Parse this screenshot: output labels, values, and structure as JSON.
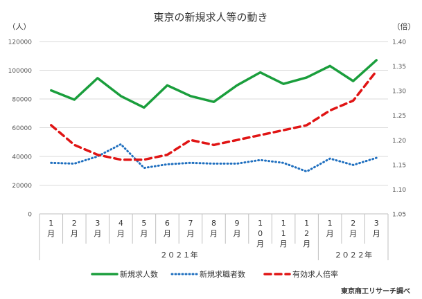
{
  "chart_data": {
    "type": "line",
    "title": "東京の新規求人等の動き",
    "left_unit": "（人）",
    "right_unit": "（倍）",
    "categories": [
      "1月",
      "2月",
      "3月",
      "4月",
      "5月",
      "6月",
      "7月",
      "8月",
      "9月",
      "10月",
      "11月",
      "12月",
      "1月",
      "2月",
      "3月"
    ],
    "years": [
      {
        "label": "２０２１年",
        "from": 0,
        "to": 11
      },
      {
        "label": "２０２２年",
        "from": 12,
        "to": 14
      }
    ],
    "y_left": {
      "min": 0,
      "max": 120000,
      "ticks": [
        "0",
        "20000",
        "40000",
        "60000",
        "80000",
        "100000",
        "120000"
      ]
    },
    "y_right": {
      "min": 1.05,
      "max": 1.4,
      "ticks": [
        "1.05",
        "1.10",
        "1.15",
        "1.20",
        "1.25",
        "1.30",
        "1.35",
        "1.40"
      ]
    },
    "series": [
      {
        "name": "新規求人数",
        "axis": "left",
        "color": "#1a9e3c",
        "style": "solid",
        "values": [
          86000,
          79500,
          94500,
          82000,
          74000,
          89500,
          82000,
          78000,
          89500,
          98500,
          90500,
          95000,
          103000,
          92500,
          107000
        ]
      },
      {
        "name": "新規求職者数",
        "axis": "left",
        "color": "#1f6fbf",
        "style": "dotted",
        "values": [
          35500,
          35000,
          40000,
          48500,
          32000,
          34500,
          35500,
          35000,
          35000,
          37500,
          35500,
          29500,
          38500,
          34000,
          39000
        ]
      },
      {
        "name": "有効求人倍率",
        "axis": "right",
        "color": "#e01414",
        "style": "dashed",
        "values": [
          1.23,
          1.19,
          1.17,
          1.16,
          1.16,
          1.17,
          1.2,
          1.19,
          1.2,
          1.21,
          1.22,
          1.23,
          1.26,
          1.28,
          1.34
        ]
      }
    ],
    "source": "東京商工リサーチ調べ",
    "grid": true,
    "legend": "bottom"
  }
}
